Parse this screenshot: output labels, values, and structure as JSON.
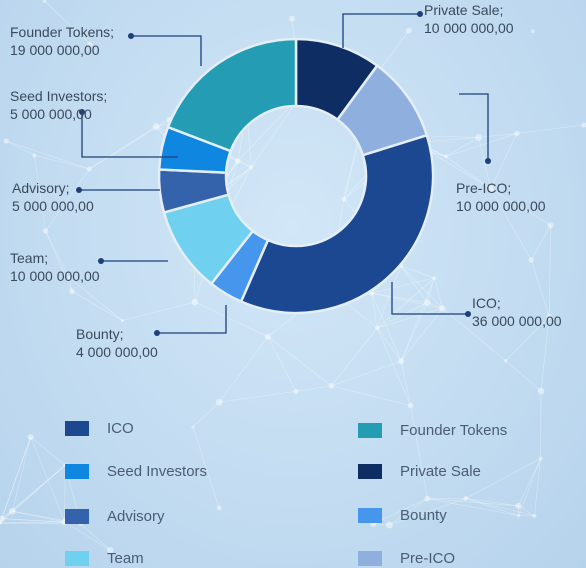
{
  "chart_data": {
    "type": "pie",
    "variant": "donut",
    "slices": [
      {
        "label": "Private Sale",
        "value": 10000000,
        "value_text": "10 000 000,00",
        "color": "#0d2d63"
      },
      {
        "label": "Pre-ICO",
        "value": 10000000,
        "value_text": "10 000 000,00",
        "color": "#8fb0df"
      },
      {
        "label": "ICO",
        "value": 36000000,
        "value_text": "36 000 000,00",
        "color": "#1c4791"
      },
      {
        "label": "Bounty",
        "value": 4000000,
        "value_text": "4 000 000,00",
        "color": "#4796ee"
      },
      {
        "label": "Team",
        "value": 10000000,
        "value_text": "10 000 000,00",
        "color": "#6fd0ef"
      },
      {
        "label": "Advisory",
        "value": 5000000,
        "value_text": "5 000 000,00",
        "color": "#3563ab"
      },
      {
        "label": "Seed Investors",
        "value": 5000000,
        "value_text": "5 000 000,00",
        "color": "#0f86e0"
      },
      {
        "label": "Founder Tokens",
        "value": 19000000,
        "value_text": "19 000 000,00",
        "color": "#249db4"
      }
    ]
  },
  "callouts": {
    "private_sale": {
      "name": "Private Sale;",
      "value": "10 000 000,00"
    },
    "pre_ico": {
      "name": "Pre-ICO;",
      "value": "10 000 000,00"
    },
    "ico": {
      "name": "ICO;",
      "value": "36 000 000,00"
    },
    "bounty": {
      "name": "Bounty;",
      "value": "4 000 000,00"
    },
    "team": {
      "name": "Team;",
      "value": "10 000 000,00"
    },
    "advisory": {
      "name": "Advisory;",
      "value": "5 000 000,00"
    },
    "seed": {
      "name": "Seed Investors;",
      "value": "5 000 000,00"
    },
    "founder": {
      "name": "Founder Tokens;",
      "value": "19 000 000,00"
    }
  },
  "legend": [
    {
      "label": "ICO",
      "color": "#1c4791"
    },
    {
      "label": "Founder Tokens",
      "color": "#249db4"
    },
    {
      "label": "Seed Investors",
      "color": "#0f86e0"
    },
    {
      "label": "Private Sale",
      "color": "#0d2d63"
    },
    {
      "label": "Advisory",
      "color": "#3563ab"
    },
    {
      "label": "Bounty",
      "color": "#4796ee"
    },
    {
      "label": "Team",
      "color": "#6fd0ef"
    },
    {
      "label": "Pre-ICO",
      "color": "#8fb0df"
    }
  ],
  "leader_color": "#1d3f7a"
}
